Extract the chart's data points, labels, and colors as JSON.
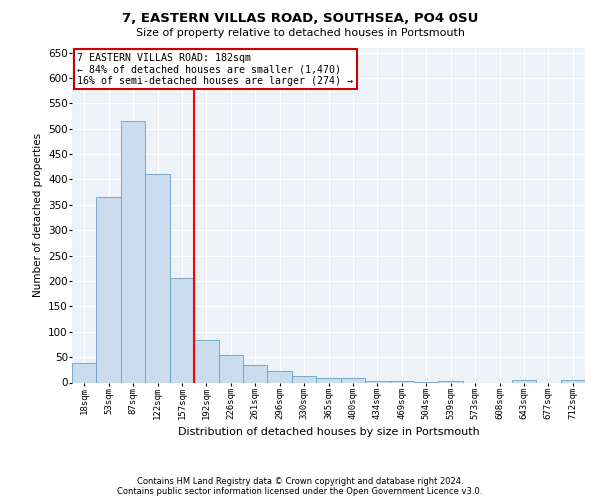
{
  "title": "7, EASTERN VILLAS ROAD, SOUTHSEA, PO4 0SU",
  "subtitle": "Size of property relative to detached houses in Portsmouth",
  "xlabel": "Distribution of detached houses by size in Portsmouth",
  "ylabel": "Number of detached properties",
  "bar_color": "#c9ddef",
  "bar_edge_color": "#6a9fc0",
  "categories": [
    "18sqm",
    "53sqm",
    "87sqm",
    "122sqm",
    "157sqm",
    "192sqm",
    "226sqm",
    "261sqm",
    "296sqm",
    "330sqm",
    "365sqm",
    "400sqm",
    "434sqm",
    "469sqm",
    "504sqm",
    "539sqm",
    "573sqm",
    "608sqm",
    "643sqm",
    "677sqm",
    "712sqm"
  ],
  "values": [
    38,
    365,
    515,
    410,
    205,
    83,
    55,
    35,
    22,
    12,
    8,
    8,
    3,
    3,
    1,
    3,
    0,
    0,
    4,
    0,
    4
  ],
  "ylim": [
    0,
    660
  ],
  "yticks": [
    0,
    50,
    100,
    150,
    200,
    250,
    300,
    350,
    400,
    450,
    500,
    550,
    600,
    650
  ],
  "vline_x": 4.5,
  "annotation_line1": "7 EASTERN VILLAS ROAD: 182sqm",
  "annotation_line2": "← 84% of detached houses are smaller (1,470)",
  "annotation_line3": "16% of semi-detached houses are larger (274) →",
  "annotation_box_color": "#ffffff",
  "annotation_box_edgecolor": "#cc0000",
  "footnote1": "Contains HM Land Registry data © Crown copyright and database right 2024.",
  "footnote2": "Contains public sector information licensed under the Open Government Licence v3.0.",
  "background_color": "#edf2f9",
  "grid_color": "#ffffff",
  "fig_bg": "#ffffff"
}
